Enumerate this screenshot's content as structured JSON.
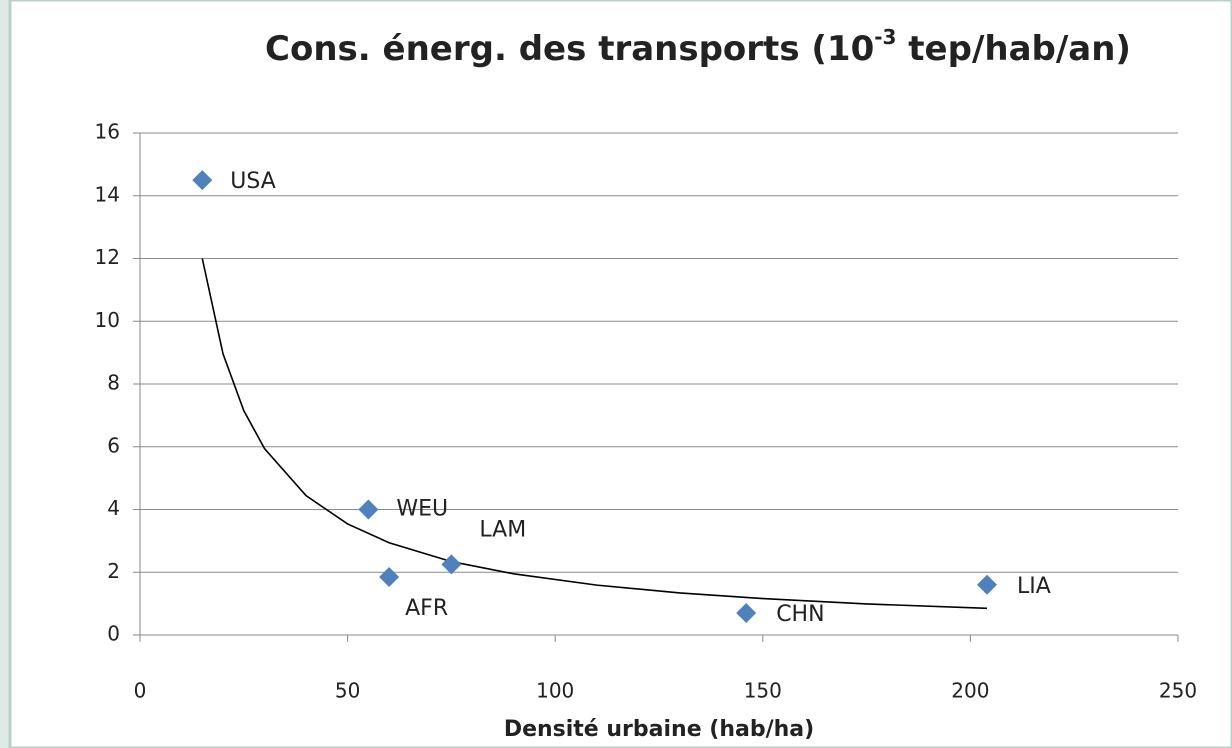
{
  "chart_data": {
    "type": "scatter",
    "title": [
      "Cons. énerg. des transports (10",
      "-3",
      " tep/hab/an)"
    ],
    "xlabel": "Densité urbaine (hab/ha)",
    "labels": [
      "USA",
      "WEU",
      "AFR",
      "LAM",
      "CHN",
      "LIA"
    ],
    "x": [
      15,
      55,
      60,
      75,
      146,
      204
    ],
    "values": [
      14.5,
      4,
      1.85,
      2.25,
      0.7,
      1.6
    ],
    "color": "#4f81bd",
    "trendline": {
      "x": [
        15,
        20,
        25,
        30,
        40,
        50,
        60,
        75,
        90,
        110,
        130,
        150,
        175,
        204
      ],
      "values": [
        12,
        8.96,
        7.15,
        5.94,
        4.44,
        3.54,
        2.94,
        2.34,
        1.95,
        1.59,
        1.34,
        1.16,
        0.99,
        0.85
      ],
      "color": "#000000"
    },
    "xlim": [
      0,
      250
    ],
    "xticks": [
      0,
      50,
      100,
      150,
      200,
      250
    ],
    "ylim": [
      0,
      16
    ],
    "yticks": [
      0,
      2,
      4,
      6,
      8,
      10,
      12,
      14,
      16
    ],
    "grid": true
  }
}
